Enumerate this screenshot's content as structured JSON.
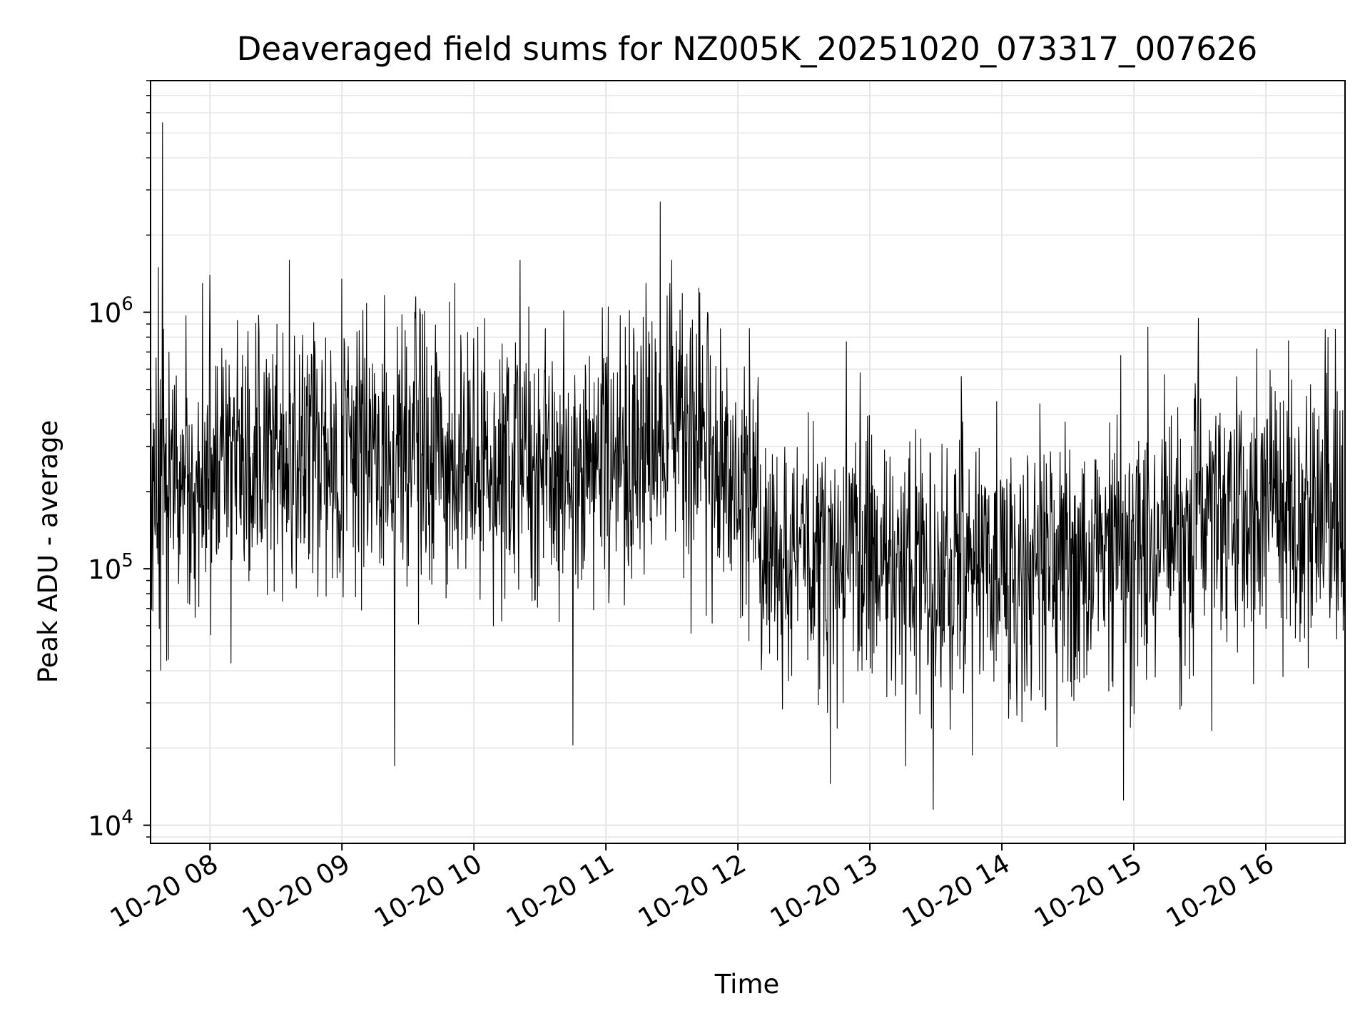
{
  "chart_data": {
    "type": "line",
    "title": "Deaveraged field sums for NZ005K_20251020_073317_007626",
    "xlabel": "Time",
    "ylabel": "Peak ADU - average",
    "yscale": "log",
    "ylim": [
      8500,
      8000000
    ],
    "xlim_hours": [
      7.55,
      16.6
    ],
    "x_ticks": [
      {
        "hour": 8,
        "label": "10-20 08"
      },
      {
        "hour": 9,
        "label": "10-20 09"
      },
      {
        "hour": 10,
        "label": "10-20 10"
      },
      {
        "hour": 11,
        "label": "10-20 11"
      },
      {
        "hour": 12,
        "label": "10-20 12"
      },
      {
        "hour": 13,
        "label": "10-20 13"
      },
      {
        "hour": 14,
        "label": "10-20 14"
      },
      {
        "hour": 15,
        "label": "10-20 15"
      },
      {
        "hour": 16,
        "label": "10-20 16"
      }
    ],
    "y_ticks": [
      {
        "value": 10000,
        "base": "10",
        "exp": "4"
      },
      {
        "value": 100000,
        "base": "10",
        "exp": "5"
      },
      {
        "value": 1000000,
        "base": "10",
        "exp": "6"
      }
    ],
    "grid": true,
    "line_color": "#000000",
    "grid_color": "#e6e6e6",
    "series": [
      {
        "name": "Peak ADU - average",
        "level_profile": [
          {
            "hour": 7.55,
            "median": 180000
          },
          {
            "hour": 8.0,
            "median": 260000
          },
          {
            "hour": 9.0,
            "median": 300000
          },
          {
            "hour": 10.0,
            "median": 270000
          },
          {
            "hour": 11.0,
            "median": 260000
          },
          {
            "hour": 11.5,
            "median": 380000
          },
          {
            "hour": 12.0,
            "median": 220000
          },
          {
            "hour": 12.3,
            "median": 110000
          },
          {
            "hour": 13.0,
            "median": 100000
          },
          {
            "hour": 14.0,
            "median": 95000
          },
          {
            "hour": 15.0,
            "median": 120000
          },
          {
            "hour": 16.0,
            "median": 180000
          },
          {
            "hour": 16.6,
            "median": 150000
          }
        ],
        "spikes": [
          {
            "hour": 7.64,
            "value": 5500000
          },
          {
            "hour": 7.61,
            "value": 1500000
          },
          {
            "hour": 8.0,
            "value": 1400000
          },
          {
            "hour": 8.6,
            "value": 1600000
          },
          {
            "hour": 9.0,
            "value": 1350000
          },
          {
            "hour": 9.4,
            "value": 17000
          },
          {
            "hour": 10.35,
            "value": 1600000
          },
          {
            "hour": 10.75,
            "value": 20500
          },
          {
            "hour": 11.41,
            "value": 2700000
          },
          {
            "hour": 11.5,
            "value": 1600000
          },
          {
            "hour": 12.7,
            "value": 14500
          },
          {
            "hour": 13.48,
            "value": 11500
          },
          {
            "hour": 14.92,
            "value": 12500
          },
          {
            "hour": 14.9,
            "value": 680000
          },
          {
            "hour": 16.45,
            "value": 860000
          }
        ]
      }
    ]
  }
}
